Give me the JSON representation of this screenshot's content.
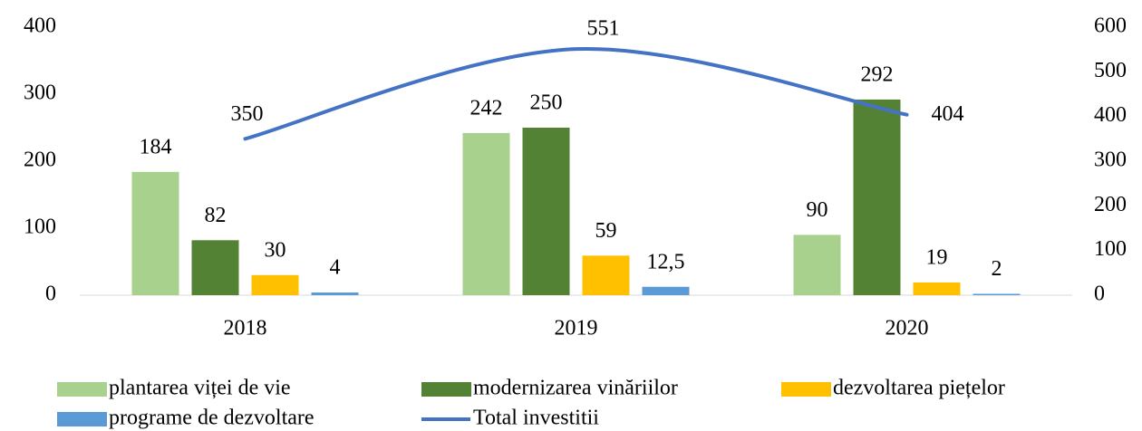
{
  "chart_data": {
    "type": "bar",
    "categories": [
      "2018",
      "2019",
      "2020"
    ],
    "series": [
      {
        "name": "plantarea viței de vie",
        "color": "#a9d18e",
        "values": [
          184,
          242,
          90
        ]
      },
      {
        "name": "modernizarea vinăriilor",
        "color": "#548235",
        "values": [
          82,
          250,
          292
        ]
      },
      {
        "name": "dezvoltarea piețelor",
        "color": "#ffc000",
        "values": [
          30,
          59,
          19
        ]
      },
      {
        "name": "programe de dezvoltare",
        "color": "#5b9bd5",
        "values": [
          4,
          12.5,
          2
        ],
        "value_labels": [
          "4",
          "12,5",
          "2"
        ]
      },
      {
        "name": "Total investitii",
        "color": "#4472c4",
        "type": "line",
        "axis": "y2",
        "values": [
          350,
          551,
          404
        ]
      }
    ],
    "ylim": [
      0,
      400
    ],
    "yticks": [
      0,
      100,
      200,
      300,
      400
    ],
    "y2lim": [
      0,
      600
    ],
    "y2ticks": [
      0,
      100,
      200,
      300,
      400,
      500,
      600
    ],
    "grid": false,
    "legend": "bottom"
  }
}
